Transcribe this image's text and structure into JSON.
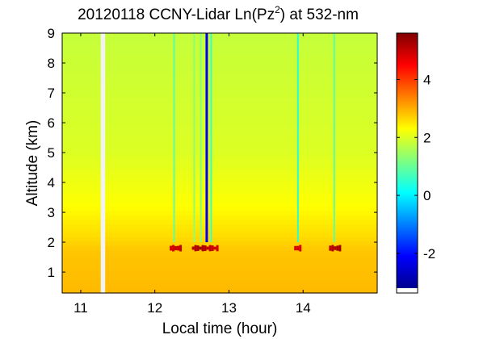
{
  "chart_data": {
    "type": "heatmap",
    "title_main": "20120118 CCNY-Lidar Ln(Pz",
    "title_sup": "2",
    "title_tail": ") at 532-nm",
    "xlabel": "Local time (hour)",
    "ylabel": "Altitude (km)",
    "xlim": [
      10.75,
      15.0
    ],
    "ylim": [
      0.3,
      9.0
    ],
    "x_ticks": [
      "11",
      "12",
      "13",
      "14"
    ],
    "y_ticks": [
      "1",
      "2",
      "3",
      "4",
      "5",
      "6",
      "7",
      "8",
      "9"
    ],
    "colorbar": {
      "range": [
        -3.2,
        5.6
      ],
      "ticks": [
        "-2",
        "0",
        "2",
        "4"
      ],
      "colormap": "jet"
    },
    "grid": false,
    "field": {
      "background_profile": [
        {
          "altitude": 0.3,
          "value": 2.9
        },
        {
          "altitude": 1.7,
          "value": 2.8
        },
        {
          "altitude": 2.2,
          "value": 2.6
        },
        {
          "altitude": 3.2,
          "value": 2.3
        },
        {
          "altitude": 5.0,
          "value": 2.0
        },
        {
          "altitude": 9.0,
          "value": 1.8
        }
      ],
      "data_gap": [
        11.27,
        11.33
      ],
      "low_signal_columns": [
        {
          "time": 12.26,
          "value": 0.9
        },
        {
          "time": 12.53,
          "value": 1.3
        },
        {
          "time": 12.62,
          "value": 1.2
        },
        {
          "time": 12.7,
          "value": -2.2
        },
        {
          "time": 12.76,
          "value": 0.6
        },
        {
          "time": 13.93,
          "value": 0.4
        },
        {
          "time": 14.42,
          "value": 0.9
        }
      ],
      "cloud_layer": {
        "altitude": 1.8,
        "value": 5.3,
        "segments": [
          [
            12.2,
            12.36
          ],
          [
            12.5,
            12.85
          ],
          [
            13.88,
            13.97
          ],
          [
            14.35,
            14.5
          ]
        ]
      }
    }
  }
}
